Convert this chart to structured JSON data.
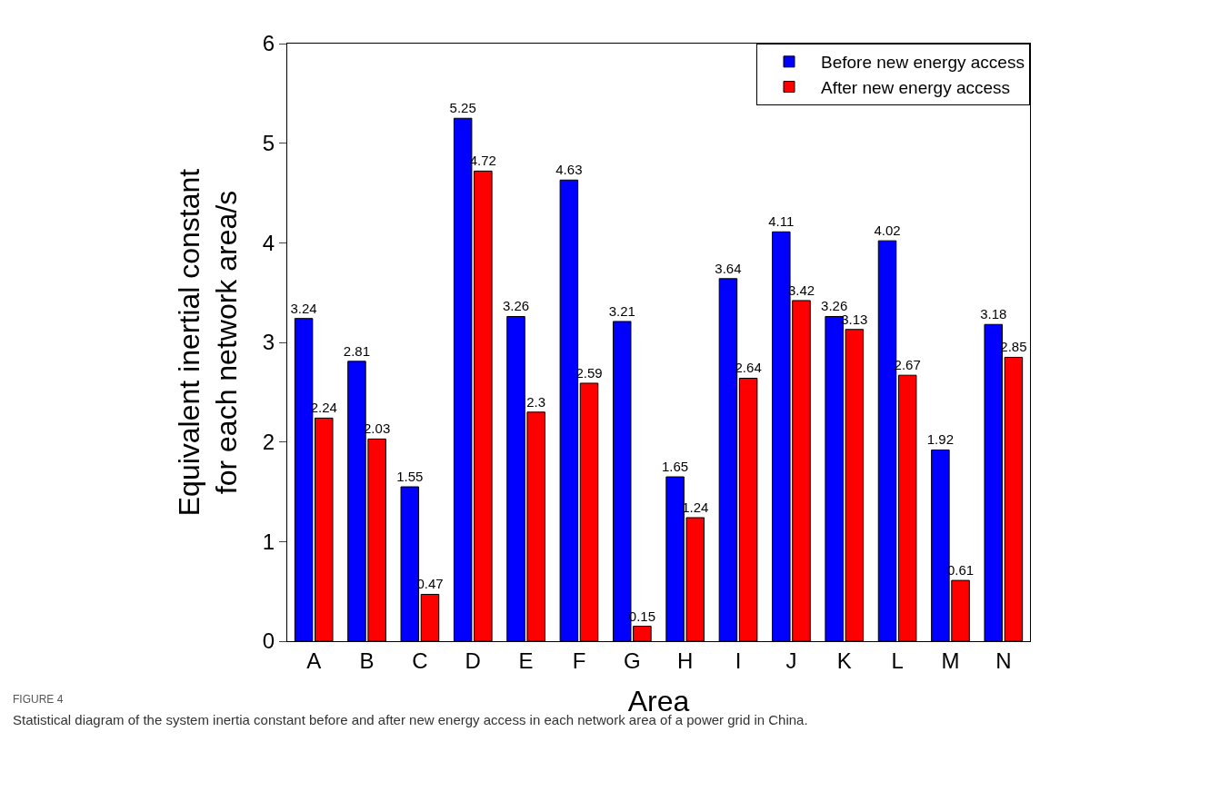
{
  "chart_data": {
    "type": "bar",
    "xlabel": "Area",
    "ylabel": "Equivalent inertial constant\nfor each network area/s",
    "categories": [
      "A",
      "B",
      "C",
      "D",
      "E",
      "F",
      "G",
      "H",
      "I",
      "J",
      "K",
      "L",
      "M",
      "N"
    ],
    "series": [
      {
        "name": "Before new energy access",
        "color": "#0000ff",
        "values": [
          3.24,
          2.81,
          1.55,
          5.25,
          3.26,
          4.63,
          3.21,
          1.65,
          3.64,
          4.11,
          3.26,
          4.02,
          1.92,
          3.18
        ]
      },
      {
        "name": "After new energy access",
        "color": "#ff0000",
        "values": [
          2.24,
          2.03,
          0.47,
          4.72,
          2.3,
          2.59,
          0.15,
          1.24,
          2.64,
          3.42,
          3.13,
          2.67,
          0.61,
          2.85
        ]
      }
    ],
    "ylim": [
      0,
      6
    ],
    "yticks": [
      0,
      1,
      2,
      3,
      4,
      5,
      6
    ],
    "data_labels": true,
    "legend": "top right",
    "annotations": [
      "FIGURE 4",
      "Statistical diagram of the system inertia constant before and after new energy access in each network area of a power grid in China."
    ]
  }
}
